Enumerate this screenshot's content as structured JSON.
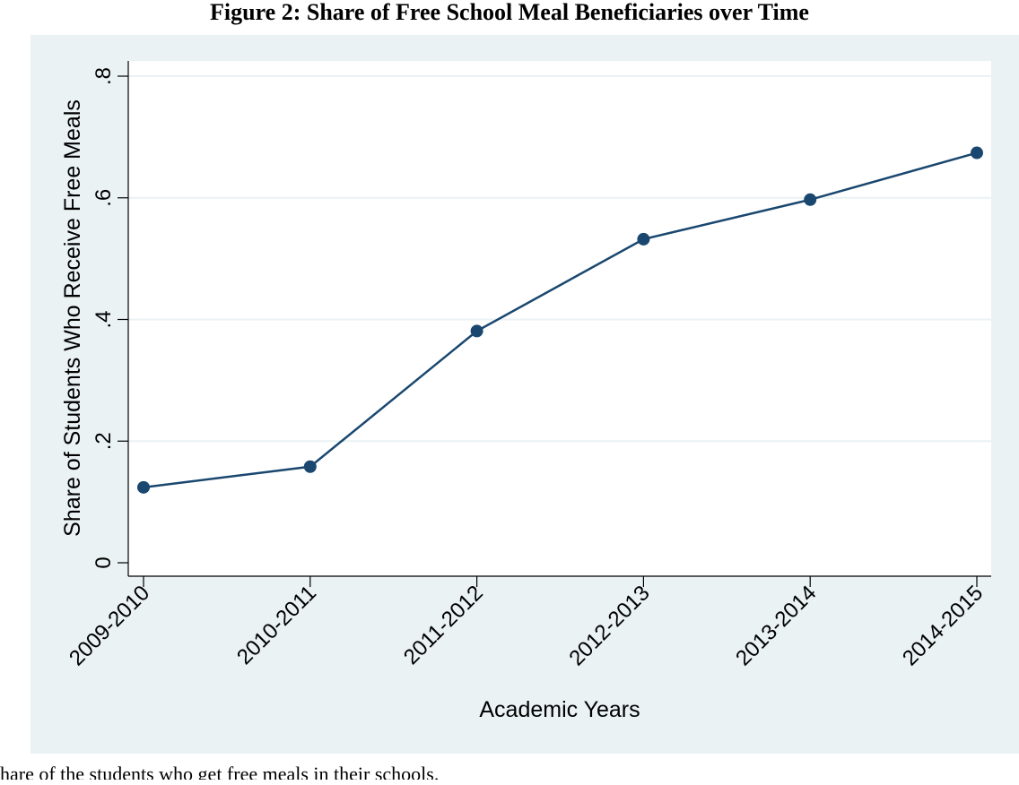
{
  "figure": {
    "title": "Figure 2: Share of Free School Meal Beneficiaries over Time",
    "caption": "hare of the students who get free meals in their schools."
  },
  "chart_data": {
    "type": "line",
    "title": "",
    "xlabel": "Academic Years",
    "ylabel": "Share of Students Who Receive Free Meals",
    "categories": [
      "2009-2010",
      "2010-2011",
      "2011-2012",
      "2012-2013",
      "2013-2014",
      "2014-2015"
    ],
    "series": [
      {
        "values": [
          0.124,
          0.158,
          0.381,
          0.532,
          0.597,
          0.674
        ]
      }
    ],
    "ylim": [
      0,
      0.8
    ],
    "yticks": [
      0,
      0.2,
      0.4,
      0.6,
      0.8
    ],
    "ytick_labels": [
      "0",
      ".2",
      ".4",
      ".6",
      ".8"
    ],
    "grid": true,
    "colors": {
      "line": "#1a476f",
      "plot_background": "#ffffff",
      "outer_background": "#eaf2f3",
      "gridline": "#eaf2f3"
    }
  }
}
